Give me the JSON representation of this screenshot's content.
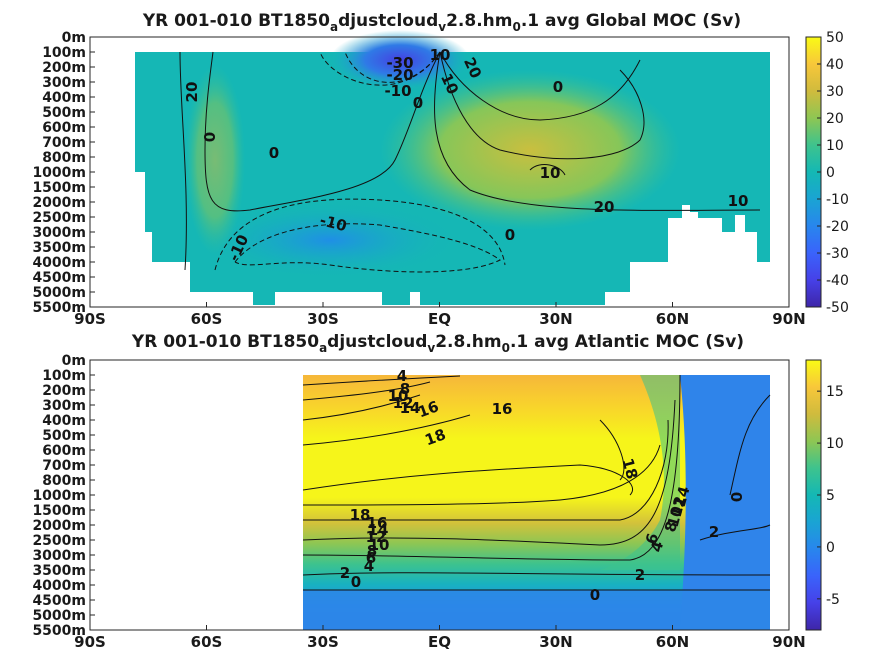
{
  "chart_data": [
    {
      "type": "heatmap",
      "title": "YR 001-010 BT1850_adjustcloud_v2.8.hm_0.1 avg  Global MOC (Sv)",
      "title_parts": [
        "YR 001-010 BT1850",
        "a",
        "djustcloud",
        "v",
        "2.8.hm",
        "0",
        ".1 avg  Global MOC (Sv)"
      ],
      "x_ticks": [
        "90S",
        "60S",
        "30S",
        "EQ",
        "30N",
        "60N",
        "90N"
      ],
      "y_ticks": [
        "0m",
        "100m",
        "200m",
        "300m",
        "400m",
        "500m",
        "600m",
        "700m",
        "800m",
        "1000m",
        "1500m",
        "2000m",
        "2500m",
        "3000m",
        "3500m",
        "4000m",
        "4500m",
        "5000m",
        "5500m"
      ],
      "colorbar_ticks": [
        "50",
        "40",
        "30",
        "20",
        "10",
        "0",
        "-10",
        "-20",
        "-30",
        "-40",
        "-50"
      ],
      "clim": [
        -50,
        50
      ],
      "contour_labels": [
        "-30",
        "-20",
        "-10",
        "0",
        "10",
        "20",
        "0",
        "10",
        "20",
        "10",
        "0",
        "-10",
        "-10",
        "0",
        "20",
        "0",
        "10"
      ],
      "cells": [
        {
          "lat": -70,
          "depth_m": 1000,
          "value": 8
        },
        {
          "lat": -65,
          "depth_m": 600,
          "value": 10
        },
        {
          "lat": -40,
          "depth_m": 3000,
          "value": -14
        },
        {
          "lat": -20,
          "depth_m": 3500,
          "value": -12
        },
        {
          "lat": -10,
          "depth_m": 150,
          "value": -35
        },
        {
          "lat": 5,
          "depth_m": 150,
          "value": 28
        },
        {
          "lat": 20,
          "depth_m": 300,
          "value": 12
        },
        {
          "lat": 35,
          "depth_m": 1000,
          "value": 21
        },
        {
          "lat": 40,
          "depth_m": 2000,
          "value": 10
        },
        {
          "lat": 70,
          "depth_m": 2500,
          "value": 0
        }
      ]
    },
    {
      "type": "heatmap",
      "title": "YR 001-010 BT1850_adjustcloud_v2.8.hm_0.1 avg  Atlantic MOC (Sv)",
      "title_parts": [
        "YR 001-010 BT1850",
        "a",
        "djustcloud",
        "v",
        "2.8.hm",
        "0",
        ".1 avg  Atlantic MOC (Sv)"
      ],
      "x_ticks": [
        "90S",
        "60S",
        "30S",
        "EQ",
        "30N",
        "60N",
        "90N"
      ],
      "y_ticks": [
        "0m",
        "100m",
        "200m",
        "300m",
        "400m",
        "500m",
        "600m",
        "700m",
        "800m",
        "1000m",
        "1500m",
        "2000m",
        "2500m",
        "3000m",
        "3500m",
        "4000m",
        "4500m",
        "5000m",
        "5500m"
      ],
      "colorbar_ticks": [
        "15",
        "10",
        "5",
        "0",
        "-5"
      ],
      "clim": [
        -8,
        18
      ],
      "contour_labels": [
        "4",
        "8",
        "10",
        "12",
        "14",
        "16",
        "16",
        "18",
        "18",
        "18",
        "16",
        "14",
        "12",
        "10",
        "8",
        "6",
        "4",
        "2",
        "0",
        "14",
        "12",
        "10",
        "8",
        "6",
        "4",
        "2",
        "0",
        "2",
        "0"
      ],
      "cells": [
        {
          "lat": -25,
          "depth_m": 600,
          "value": 16
        },
        {
          "lat": 0,
          "depth_m": 800,
          "value": 18
        },
        {
          "lat": 30,
          "depth_m": 1000,
          "value": 18
        },
        {
          "lat": -20,
          "depth_m": 2500,
          "value": 10
        },
        {
          "lat": 20,
          "depth_m": 3000,
          "value": 6
        },
        {
          "lat": 0,
          "depth_m": 4500,
          "value": 0
        },
        {
          "lat": 75,
          "depth_m": 1500,
          "value": 0
        }
      ]
    }
  ]
}
